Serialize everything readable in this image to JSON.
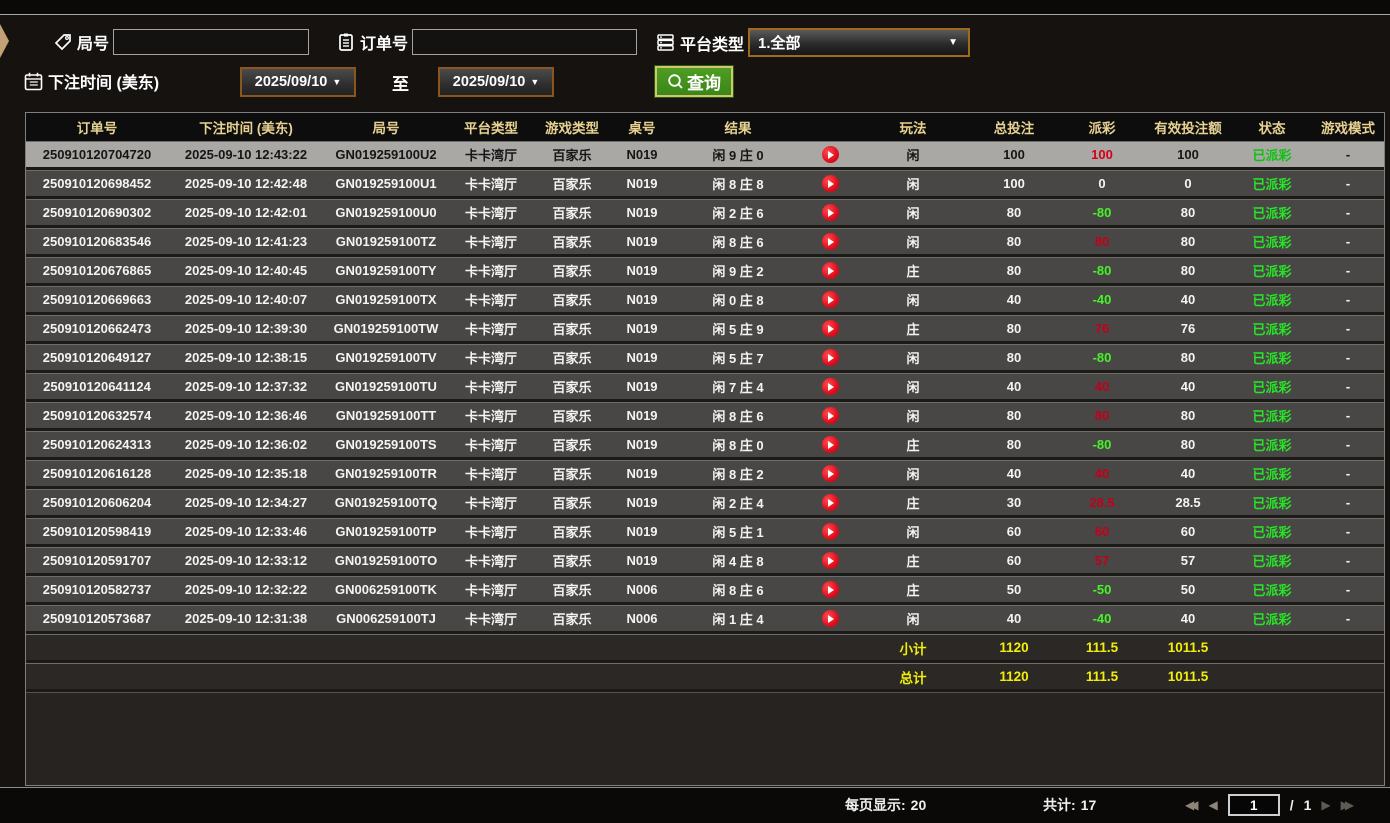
{
  "filters": {
    "round": {
      "label": "局号",
      "value": ""
    },
    "order": {
      "label": "订单号",
      "value": ""
    },
    "platform": {
      "label": "平台类型",
      "value": "1.全部"
    },
    "bet_time": {
      "label": "下注时间 (美东)",
      "from": "2025/09/10",
      "to_label": "至",
      "to": "2025/09/10",
      "arrow": "▼"
    },
    "query": {
      "label": "查询"
    }
  },
  "table": {
    "columns": [
      {
        "key": "order-no",
        "label": "订单号"
      },
      {
        "key": "bet-time",
        "label": "下注时间 (美东)"
      },
      {
        "key": "round-no",
        "label": "局号"
      },
      {
        "key": "platform-type",
        "label": "平台类型"
      },
      {
        "key": "game-type",
        "label": "游戏类型"
      },
      {
        "key": "table-no",
        "label": "桌号"
      },
      {
        "key": "result",
        "label": "结果"
      },
      {
        "key": "video",
        "label": ""
      },
      {
        "key": "play-type",
        "label": "玩法"
      },
      {
        "key": "total-bet",
        "label": "总投注"
      },
      {
        "key": "payout",
        "label": "派彩"
      },
      {
        "key": "valid-bet",
        "label": "有效投注额"
      },
      {
        "key": "status",
        "label": "状态"
      },
      {
        "key": "game-mode",
        "label": "游戏模式"
      }
    ],
    "rows": [
      {
        "order": "250910120704720",
        "time": "2025-09-10 12:43:22",
        "round": "GN019259100U2",
        "platform": "卡卡湾厅",
        "game": "百家乐",
        "table_no": "N019",
        "result": "闲 9 庄 0",
        "bet_on": "闲",
        "total_bet": "100",
        "payout": "100",
        "payout_color": "red",
        "valid_bet": "100",
        "status": "已派彩",
        "mode": "-",
        "selected": true
      },
      {
        "order": "250910120698452",
        "time": "2025-09-10 12:42:48",
        "round": "GN019259100U1",
        "platform": "卡卡湾厅",
        "game": "百家乐",
        "table_no": "N019",
        "result": "闲 8 庄 8",
        "bet_on": "闲",
        "total_bet": "100",
        "payout": "0",
        "payout_color": "white",
        "valid_bet": "0",
        "status": "已派彩",
        "mode": "-",
        "selected": false
      },
      {
        "order": "250910120690302",
        "time": "2025-09-10 12:42:01",
        "round": "GN019259100U0",
        "platform": "卡卡湾厅",
        "game": "百家乐",
        "table_no": "N019",
        "result": "闲 2 庄 6",
        "bet_on": "闲",
        "total_bet": "80",
        "payout": "-80",
        "payout_color": "green",
        "valid_bet": "80",
        "status": "已派彩",
        "mode": "-",
        "selected": false
      },
      {
        "order": "250910120683546",
        "time": "2025-09-10 12:41:23",
        "round": "GN019259100TZ",
        "platform": "卡卡湾厅",
        "game": "百家乐",
        "table_no": "N019",
        "result": "闲 8 庄 6",
        "bet_on": "闲",
        "total_bet": "80",
        "payout": "80",
        "payout_color": "red",
        "valid_bet": "80",
        "status": "已派彩",
        "mode": "-",
        "selected": false
      },
      {
        "order": "250910120676865",
        "time": "2025-09-10 12:40:45",
        "round": "GN019259100TY",
        "platform": "卡卡湾厅",
        "game": "百家乐",
        "table_no": "N019",
        "result": "闲 9 庄 2",
        "bet_on": "庄",
        "total_bet": "80",
        "payout": "-80",
        "payout_color": "green",
        "valid_bet": "80",
        "status": "已派彩",
        "mode": "-",
        "selected": false
      },
      {
        "order": "250910120669663",
        "time": "2025-09-10 12:40:07",
        "round": "GN019259100TX",
        "platform": "卡卡湾厅",
        "game": "百家乐",
        "table_no": "N019",
        "result": "闲 0 庄 8",
        "bet_on": "闲",
        "total_bet": "40",
        "payout": "-40",
        "payout_color": "green",
        "valid_bet": "40",
        "status": "已派彩",
        "mode": "-",
        "selected": false
      },
      {
        "order": "250910120662473",
        "time": "2025-09-10 12:39:30",
        "round": "GN019259100TW",
        "platform": "卡卡湾厅",
        "game": "百家乐",
        "table_no": "N019",
        "result": "闲 5 庄 9",
        "bet_on": "庄",
        "total_bet": "80",
        "payout": "76",
        "payout_color": "red",
        "valid_bet": "76",
        "status": "已派彩",
        "mode": "-",
        "selected": false
      },
      {
        "order": "250910120649127",
        "time": "2025-09-10 12:38:15",
        "round": "GN019259100TV",
        "platform": "卡卡湾厅",
        "game": "百家乐",
        "table_no": "N019",
        "result": "闲 5 庄 7",
        "bet_on": "闲",
        "total_bet": "80",
        "payout": "-80",
        "payout_color": "green",
        "valid_bet": "80",
        "status": "已派彩",
        "mode": "-",
        "selected": false
      },
      {
        "order": "250910120641124",
        "time": "2025-09-10 12:37:32",
        "round": "GN019259100TU",
        "platform": "卡卡湾厅",
        "game": "百家乐",
        "table_no": "N019",
        "result": "闲 7 庄 4",
        "bet_on": "闲",
        "total_bet": "40",
        "payout": "40",
        "payout_color": "red",
        "valid_bet": "40",
        "status": "已派彩",
        "mode": "-",
        "selected": false
      },
      {
        "order": "250910120632574",
        "time": "2025-09-10 12:36:46",
        "round": "GN019259100TT",
        "platform": "卡卡湾厅",
        "game": "百家乐",
        "table_no": "N019",
        "result": "闲 8 庄 6",
        "bet_on": "闲",
        "total_bet": "80",
        "payout": "80",
        "payout_color": "red",
        "valid_bet": "80",
        "status": "已派彩",
        "mode": "-",
        "selected": false
      },
      {
        "order": "250910120624313",
        "time": "2025-09-10 12:36:02",
        "round": "GN019259100TS",
        "platform": "卡卡湾厅",
        "game": "百家乐",
        "table_no": "N019",
        "result": "闲 8 庄 0",
        "bet_on": "庄",
        "total_bet": "80",
        "payout": "-80",
        "payout_color": "green",
        "valid_bet": "80",
        "status": "已派彩",
        "mode": "-",
        "selected": false
      },
      {
        "order": "250910120616128",
        "time": "2025-09-10 12:35:18",
        "round": "GN019259100TR",
        "platform": "卡卡湾厅",
        "game": "百家乐",
        "table_no": "N019",
        "result": "闲 8 庄 2",
        "bet_on": "闲",
        "total_bet": "40",
        "payout": "40",
        "payout_color": "red",
        "valid_bet": "40",
        "status": "已派彩",
        "mode": "-",
        "selected": false
      },
      {
        "order": "250910120606204",
        "time": "2025-09-10 12:34:27",
        "round": "GN019259100TQ",
        "platform": "卡卡湾厅",
        "game": "百家乐",
        "table_no": "N019",
        "result": "闲 2 庄 4",
        "bet_on": "庄",
        "total_bet": "30",
        "payout": "28.5",
        "payout_color": "red",
        "valid_bet": "28.5",
        "status": "已派彩",
        "mode": "-",
        "selected": false
      },
      {
        "order": "250910120598419",
        "time": "2025-09-10 12:33:46",
        "round": "GN019259100TP",
        "platform": "卡卡湾厅",
        "game": "百家乐",
        "table_no": "N019",
        "result": "闲 5 庄 1",
        "bet_on": "闲",
        "total_bet": "60",
        "payout": "60",
        "payout_color": "red",
        "valid_bet": "60",
        "status": "已派彩",
        "mode": "-",
        "selected": false
      },
      {
        "order": "250910120591707",
        "time": "2025-09-10 12:33:12",
        "round": "GN019259100TO",
        "platform": "卡卡湾厅",
        "game": "百家乐",
        "table_no": "N019",
        "result": "闲 4 庄 8",
        "bet_on": "庄",
        "total_bet": "60",
        "payout": "57",
        "payout_color": "red",
        "valid_bet": "57",
        "status": "已派彩",
        "mode": "-",
        "selected": false
      },
      {
        "order": "250910120582737",
        "time": "2025-09-10 12:32:22",
        "round": "GN006259100TK",
        "platform": "卡卡湾厅",
        "game": "百家乐",
        "table_no": "N006",
        "result": "闲 8 庄 6",
        "bet_on": "庄",
        "total_bet": "50",
        "payout": "-50",
        "payout_color": "green",
        "valid_bet": "50",
        "status": "已派彩",
        "mode": "-",
        "selected": false
      },
      {
        "order": "250910120573687",
        "time": "2025-09-10 12:31:38",
        "round": "GN006259100TJ",
        "platform": "卡卡湾厅",
        "game": "百家乐",
        "table_no": "N006",
        "result": "闲 1 庄 4",
        "bet_on": "闲",
        "total_bet": "40",
        "payout": "-40",
        "payout_color": "green",
        "valid_bet": "40",
        "status": "已派彩",
        "mode": "-",
        "selected": false
      }
    ],
    "subtotal": {
      "label": "小计",
      "total_bet": "1120",
      "payout": "111.5",
      "valid_bet": "1011.5"
    },
    "grand_total": {
      "label": "总计",
      "total_bet": "1120",
      "payout": "111.5",
      "valid_bet": "1011.5"
    }
  },
  "footer": {
    "page_size_label": "每页显示:",
    "page_size": "20",
    "total_label": "共计:",
    "total_count": "17",
    "page_current": "1",
    "page_divider": "/",
    "page_total": "1"
  },
  "colors": {
    "header_text": "#e7d292",
    "row_text": "#f4f4f4",
    "payout_positive": "#c3001b",
    "payout_negative": "#49f02c",
    "status_paid": "#27e427",
    "sum_text": "#f2ee0a",
    "query_button_green": "#459318",
    "dropdown_border": "#a06a1e",
    "selected_row_bg": "#a9a8a5"
  }
}
